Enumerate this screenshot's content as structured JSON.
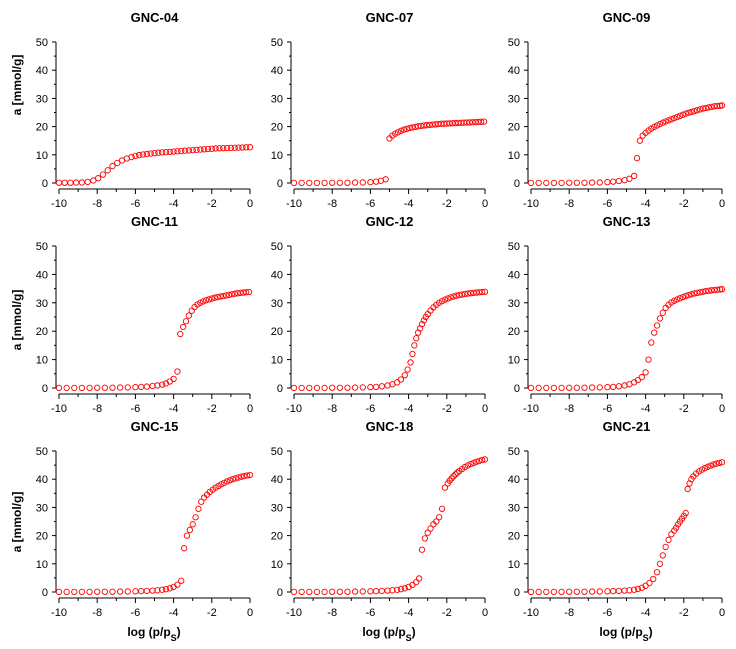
{
  "figure": {
    "ylabel": "a [mmol/g]",
    "xlabel_main": "log (p/p",
    "xlabel_sub": "S",
    "xlabel_close": ")",
    "marker_color": "#ff0000"
  },
  "chart_data": [
    {
      "type": "scatter",
      "title": "GNC-04",
      "xlim": [
        -10,
        0
      ],
      "ylim": [
        0,
        50
      ],
      "xticks": [
        "-10",
        "-8",
        "-6",
        "-4",
        "-2",
        "0"
      ],
      "yticks": [
        "0",
        "10",
        "20",
        "30",
        "40",
        "50"
      ],
      "series": [
        {
          "name": "GNC-04",
          "x": [
            -10.0,
            -9.7,
            -9.4,
            -9.1,
            -8.8,
            -8.5,
            -8.2,
            -7.95,
            -7.7,
            -7.45,
            -7.2,
            -6.95,
            -6.7,
            -6.45,
            -6.2,
            -6.0,
            -5.8,
            -5.6,
            -5.4,
            -5.2,
            -5.0,
            -4.8,
            -4.6,
            -4.4,
            -4.2,
            -4.0,
            -3.8,
            -3.6,
            -3.4,
            -3.2,
            -3.0,
            -2.8,
            -2.6,
            -2.4,
            -2.2,
            -2.0,
            -1.8,
            -1.6,
            -1.4,
            -1.2,
            -1.0,
            -0.8,
            -0.6,
            -0.4,
            -0.2,
            0.0
          ],
          "y": [
            0.1,
            0.1,
            0.1,
            0.15,
            0.2,
            0.4,
            0.9,
            1.7,
            3.0,
            4.5,
            6.0,
            7.1,
            8.0,
            8.7,
            9.2,
            9.6,
            9.9,
            10.1,
            10.3,
            10.45,
            10.6,
            10.75,
            10.85,
            10.95,
            11.05,
            11.15,
            11.25,
            11.35,
            11.45,
            11.55,
            11.65,
            11.75,
            11.85,
            11.95,
            12.05,
            12.15,
            12.25,
            12.3,
            12.35,
            12.4,
            12.45,
            12.5,
            12.55,
            12.6,
            12.65,
            12.7
          ]
        }
      ]
    },
    {
      "type": "scatter",
      "title": "GNC-07",
      "xlim": [
        -10,
        0
      ],
      "ylim": [
        0,
        50
      ],
      "xticks": [
        "-10",
        "-8",
        "-6",
        "-4",
        "-2",
        "0"
      ],
      "yticks": [
        "0",
        "10",
        "20",
        "30",
        "40",
        "50"
      ],
      "series": [
        {
          "name": "GNC-07",
          "x": [
            -10.0,
            -9.6,
            -9.2,
            -8.8,
            -8.4,
            -8.0,
            -7.6,
            -7.2,
            -6.8,
            -6.4,
            -6.0,
            -5.7,
            -5.45,
            -5.2,
            -5.0,
            -4.85,
            -4.7,
            -4.55,
            -4.4,
            -4.25,
            -4.1,
            -3.95,
            -3.8,
            -3.65,
            -3.5,
            -3.35,
            -3.2,
            -3.05,
            -2.9,
            -2.75,
            -2.6,
            -2.45,
            -2.3,
            -2.15,
            -2.0,
            -1.85,
            -1.7,
            -1.55,
            -1.4,
            -1.25,
            -1.1,
            -0.95,
            -0.8,
            -0.65,
            -0.5,
            -0.35,
            -0.2,
            -0.05
          ],
          "y": [
            0.05,
            0.05,
            0.05,
            0.05,
            0.05,
            0.1,
            0.1,
            0.1,
            0.15,
            0.2,
            0.3,
            0.5,
            0.8,
            1.3,
            15.8,
            16.8,
            17.5,
            18.0,
            18.5,
            18.9,
            19.2,
            19.5,
            19.7,
            19.9,
            20.1,
            20.25,
            20.4,
            20.5,
            20.6,
            20.7,
            20.8,
            20.9,
            21.0,
            21.05,
            21.1,
            21.15,
            21.2,
            21.25,
            21.3,
            21.35,
            21.4,
            21.45,
            21.5,
            21.55,
            21.6,
            21.65,
            21.7,
            21.75
          ]
        }
      ]
    },
    {
      "type": "scatter",
      "title": "GNC-09",
      "xlim": [
        -10,
        0
      ],
      "ylim": [
        0,
        50
      ],
      "xticks": [
        "-10",
        "-8",
        "-6",
        "-4",
        "-2",
        "0"
      ],
      "yticks": [
        "0",
        "10",
        "20",
        "30",
        "40",
        "50"
      ],
      "series": [
        {
          "name": "GNC-09",
          "x": [
            -10.0,
            -9.6,
            -9.2,
            -8.8,
            -8.4,
            -8.0,
            -7.6,
            -7.2,
            -6.8,
            -6.4,
            -6.0,
            -5.7,
            -5.4,
            -5.1,
            -4.85,
            -4.6,
            -4.45,
            -4.3,
            -4.15,
            -4.0,
            -3.85,
            -3.7,
            -3.55,
            -3.4,
            -3.25,
            -3.1,
            -2.95,
            -2.8,
            -2.65,
            -2.5,
            -2.35,
            -2.2,
            -2.05,
            -1.9,
            -1.75,
            -1.6,
            -1.45,
            -1.3,
            -1.15,
            -1.0,
            -0.85,
            -0.7,
            -0.55,
            -0.4,
            -0.25,
            -0.1,
            0.0
          ],
          "y": [
            0.05,
            0.05,
            0.05,
            0.05,
            0.05,
            0.1,
            0.1,
            0.1,
            0.15,
            0.2,
            0.3,
            0.5,
            0.7,
            1.0,
            1.5,
            2.5,
            8.8,
            15.0,
            16.8,
            17.8,
            18.6,
            19.3,
            19.9,
            20.4,
            20.9,
            21.4,
            21.8,
            22.2,
            22.6,
            23.0,
            23.4,
            23.8,
            24.2,
            24.6,
            24.9,
            25.2,
            25.5,
            25.8,
            26.1,
            26.4,
            26.6,
            26.8,
            27.0,
            27.2,
            27.3,
            27.4,
            27.5
          ]
        }
      ]
    },
    {
      "type": "scatter",
      "title": "GNC-11",
      "xlim": [
        -10,
        0
      ],
      "ylim": [
        0,
        50
      ],
      "xticks": [
        "-10",
        "-8",
        "-6",
        "-4",
        "-2",
        "0"
      ],
      "yticks": [
        "0",
        "10",
        "20",
        "30",
        "40",
        "50"
      ],
      "series": [
        {
          "name": "GNC-11",
          "x": [
            -10.0,
            -9.6,
            -9.2,
            -8.8,
            -8.4,
            -8.0,
            -7.6,
            -7.2,
            -6.8,
            -6.4,
            -6.0,
            -5.7,
            -5.4,
            -5.1,
            -4.85,
            -4.6,
            -4.4,
            -4.2,
            -4.0,
            -3.8,
            -3.65,
            -3.5,
            -3.35,
            -3.2,
            -3.05,
            -2.9,
            -2.75,
            -2.6,
            -2.45,
            -2.3,
            -2.15,
            -2.0,
            -1.85,
            -1.7,
            -1.55,
            -1.4,
            -1.25,
            -1.1,
            -0.95,
            -0.8,
            -0.65,
            -0.5,
            -0.35,
            -0.2,
            -0.05
          ],
          "y": [
            0.05,
            0.05,
            0.05,
            0.05,
            0.05,
            0.1,
            0.1,
            0.1,
            0.15,
            0.2,
            0.3,
            0.4,
            0.5,
            0.7,
            0.9,
            1.2,
            1.6,
            2.3,
            3.2,
            5.8,
            19.0,
            21.5,
            23.5,
            25.5,
            27.2,
            28.5,
            29.4,
            30.0,
            30.5,
            30.9,
            31.2,
            31.5,
            31.8,
            32.0,
            32.2,
            32.4,
            32.6,
            32.8,
            33.0,
            33.2,
            33.35,
            33.5,
            33.6,
            33.7,
            33.8
          ]
        }
      ]
    },
    {
      "type": "scatter",
      "title": "GNC-12",
      "xlim": [
        -10,
        0
      ],
      "ylim": [
        0,
        50
      ],
      "xticks": [
        "-10",
        "-8",
        "-6",
        "-4",
        "-2",
        "0"
      ],
      "yticks": [
        "0",
        "10",
        "20",
        "30",
        "40",
        "50"
      ],
      "series": [
        {
          "name": "GNC-12",
          "x": [
            -10.0,
            -9.6,
            -9.2,
            -8.8,
            -8.4,
            -8.0,
            -7.6,
            -7.2,
            -6.8,
            -6.4,
            -6.0,
            -5.7,
            -5.4,
            -5.1,
            -4.85,
            -4.6,
            -4.4,
            -4.2,
            -4.05,
            -3.9,
            -3.8,
            -3.7,
            -3.6,
            -3.5,
            -3.4,
            -3.3,
            -3.2,
            -3.1,
            -3.0,
            -2.85,
            -2.7,
            -2.55,
            -2.4,
            -2.25,
            -2.1,
            -1.95,
            -1.8,
            -1.65,
            -1.5,
            -1.35,
            -1.2,
            -1.05,
            -0.9,
            -0.75,
            -0.6,
            -0.45,
            -0.3,
            -0.15,
            0.0
          ],
          "y": [
            0.05,
            0.05,
            0.05,
            0.05,
            0.05,
            0.1,
            0.1,
            0.1,
            0.15,
            0.2,
            0.3,
            0.4,
            0.6,
            0.9,
            1.3,
            2.0,
            3.0,
            4.5,
            6.5,
            9.0,
            12.0,
            15.0,
            17.5,
            19.5,
            21.0,
            22.5,
            23.8,
            25.0,
            26.0,
            27.3,
            28.4,
            29.3,
            30.0,
            30.6,
            31.1,
            31.5,
            31.9,
            32.2,
            32.5,
            32.7,
            32.9,
            33.1,
            33.25,
            33.4,
            33.5,
            33.6,
            33.7,
            33.8,
            33.9
          ]
        }
      ]
    },
    {
      "type": "scatter",
      "title": "GNC-13",
      "xlim": [
        -10,
        0
      ],
      "ylim": [
        0,
        50
      ],
      "xticks": [
        "-10",
        "-8",
        "-6",
        "-4",
        "-2",
        "0"
      ],
      "yticks": [
        "0",
        "10",
        "20",
        "30",
        "40",
        "50"
      ],
      "series": [
        {
          "name": "GNC-13",
          "x": [
            -10.0,
            -9.6,
            -9.2,
            -8.8,
            -8.4,
            -8.0,
            -7.6,
            -7.2,
            -6.8,
            -6.4,
            -6.0,
            -5.7,
            -5.4,
            -5.1,
            -4.85,
            -4.6,
            -4.4,
            -4.2,
            -4.0,
            -3.85,
            -3.7,
            -3.55,
            -3.4,
            -3.25,
            -3.1,
            -2.95,
            -2.8,
            -2.65,
            -2.5,
            -2.35,
            -2.2,
            -2.05,
            -1.9,
            -1.75,
            -1.6,
            -1.45,
            -1.3,
            -1.15,
            -1.0,
            -0.85,
            -0.7,
            -0.55,
            -0.4,
            -0.25,
            -0.1,
            0.0
          ],
          "y": [
            0.05,
            0.05,
            0.05,
            0.05,
            0.05,
            0.1,
            0.1,
            0.1,
            0.15,
            0.2,
            0.3,
            0.4,
            0.6,
            0.9,
            1.3,
            2.0,
            2.8,
            3.8,
            5.5,
            10.0,
            16.0,
            19.5,
            22.0,
            24.5,
            26.5,
            28.2,
            29.3,
            30.1,
            30.7,
            31.2,
            31.6,
            32.0,
            32.4,
            32.7,
            33.0,
            33.3,
            33.5,
            33.7,
            33.9,
            34.1,
            34.25,
            34.4,
            34.5,
            34.6,
            34.7,
            34.8
          ]
        }
      ]
    },
    {
      "type": "scatter",
      "title": "GNC-15",
      "xlim": [
        -10,
        0
      ],
      "ylim": [
        0,
        50
      ],
      "xticks": [
        "-10",
        "-8",
        "-6",
        "-4",
        "-2",
        "0"
      ],
      "yticks": [
        "0",
        "10",
        "20",
        "30",
        "40",
        "50"
      ],
      "series": [
        {
          "name": "GNC-15",
          "x": [
            -10.0,
            -9.6,
            -9.2,
            -8.8,
            -8.4,
            -8.0,
            -7.6,
            -7.2,
            -6.8,
            -6.4,
            -6.0,
            -5.7,
            -5.4,
            -5.1,
            -4.85,
            -4.6,
            -4.4,
            -4.2,
            -4.0,
            -3.8,
            -3.6,
            -3.45,
            -3.3,
            -3.15,
            -3.0,
            -2.85,
            -2.7,
            -2.55,
            -2.4,
            -2.25,
            -2.1,
            -1.95,
            -1.8,
            -1.65,
            -1.5,
            -1.35,
            -1.2,
            -1.05,
            -0.9,
            -0.75,
            -0.6,
            -0.45,
            -0.3,
            -0.15,
            0.0
          ],
          "y": [
            0.05,
            0.05,
            0.05,
            0.05,
            0.05,
            0.1,
            0.1,
            0.1,
            0.15,
            0.2,
            0.25,
            0.3,
            0.4,
            0.5,
            0.6,
            0.8,
            1.0,
            1.3,
            1.8,
            2.6,
            4.0,
            15.5,
            20.0,
            22.0,
            24.0,
            26.5,
            29.5,
            32.0,
            33.5,
            34.5,
            35.5,
            36.3,
            37.0,
            37.6,
            38.2,
            38.7,
            39.2,
            39.6,
            40.0,
            40.3,
            40.6,
            40.9,
            41.1,
            41.3,
            41.5
          ]
        }
      ]
    },
    {
      "type": "scatter",
      "title": "GNC-18",
      "xlim": [
        -10,
        0
      ],
      "ylim": [
        0,
        50
      ],
      "xticks": [
        "-10",
        "-8",
        "-6",
        "-4",
        "-2",
        "0"
      ],
      "yticks": [
        "0",
        "10",
        "20",
        "30",
        "40",
        "50"
      ],
      "series": [
        {
          "name": "GNC-18",
          "x": [
            -10.0,
            -9.6,
            -9.2,
            -8.8,
            -8.4,
            -8.0,
            -7.6,
            -7.2,
            -6.8,
            -6.4,
            -6.0,
            -5.7,
            -5.4,
            -5.1,
            -4.85,
            -4.6,
            -4.4,
            -4.2,
            -4.0,
            -3.8,
            -3.6,
            -3.45,
            -3.3,
            -3.15,
            -3.0,
            -2.85,
            -2.7,
            -2.55,
            -2.4,
            -2.25,
            -2.1,
            -1.95,
            -1.85,
            -1.75,
            -1.65,
            -1.55,
            -1.45,
            -1.35,
            -1.2,
            -1.05,
            -0.9,
            -0.75,
            -0.6,
            -0.45,
            -0.3,
            -0.15,
            0.0
          ],
          "y": [
            0.05,
            0.05,
            0.05,
            0.05,
            0.05,
            0.1,
            0.1,
            0.1,
            0.15,
            0.2,
            0.25,
            0.3,
            0.4,
            0.5,
            0.6,
            0.8,
            1.0,
            1.3,
            1.8,
            2.5,
            3.5,
            4.8,
            15.0,
            19.0,
            21.0,
            22.5,
            24.0,
            25.0,
            26.5,
            29.5,
            37.0,
            38.5,
            39.5,
            40.3,
            41.0,
            41.7,
            42.3,
            42.9,
            43.6,
            44.3,
            44.9,
            45.4,
            45.8,
            46.2,
            46.5,
            46.8,
            47.0
          ]
        }
      ]
    },
    {
      "type": "scatter",
      "title": "GNC-21",
      "xlim": [
        -10,
        0
      ],
      "ylim": [
        0,
        50
      ],
      "xticks": [
        "-10",
        "-8",
        "-6",
        "-4",
        "-2",
        "0"
      ],
      "yticks": [
        "0",
        "10",
        "20",
        "30",
        "40",
        "50"
      ],
      "series": [
        {
          "name": "GNC-21",
          "x": [
            -10.0,
            -9.6,
            -9.2,
            -8.8,
            -8.4,
            -8.0,
            -7.6,
            -7.2,
            -6.8,
            -6.4,
            -6.0,
            -5.7,
            -5.4,
            -5.1,
            -4.85,
            -4.6,
            -4.4,
            -4.2,
            -4.0,
            -3.8,
            -3.6,
            -3.4,
            -3.25,
            -3.1,
            -2.95,
            -2.8,
            -2.65,
            -2.5,
            -2.4,
            -2.3,
            -2.2,
            -2.1,
            -2.0,
            -1.9,
            -1.8,
            -1.7,
            -1.6,
            -1.5,
            -1.35,
            -1.2,
            -1.05,
            -0.9,
            -0.75,
            -0.6,
            -0.45,
            -0.3,
            -0.15,
            0.0
          ],
          "y": [
            0.05,
            0.05,
            0.05,
            0.05,
            0.05,
            0.1,
            0.1,
            0.1,
            0.15,
            0.2,
            0.25,
            0.3,
            0.4,
            0.5,
            0.6,
            0.8,
            1.1,
            1.5,
            2.2,
            3.2,
            4.6,
            7.0,
            10.0,
            13.0,
            16.0,
            18.5,
            20.5,
            21.8,
            22.8,
            24.0,
            25.0,
            26.0,
            27.0,
            28.0,
            36.5,
            38.5,
            40.0,
            41.0,
            42.0,
            42.8,
            43.4,
            43.9,
            44.4,
            44.8,
            45.2,
            45.5,
            45.8,
            46.0
          ]
        }
      ]
    }
  ]
}
